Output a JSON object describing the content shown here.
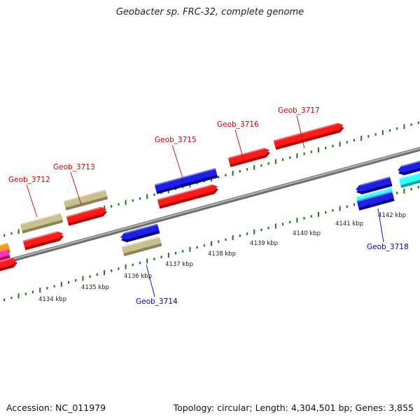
{
  "title": "Geobacter sp. FRC-32, complete genome",
  "footer": {
    "accession": "Accession: NC_011979",
    "summary": "Topology: circular; Length: 4,304,501 bp; Genes: 3,855"
  },
  "colors": {
    "forward_label": "#cc0000",
    "reverse_label": "#0000aa",
    "ticks": "#1a7a1a",
    "backbone": "#8a8a8a"
  },
  "scale_labels": [
    "4134 kbp",
    "4135 kbp",
    "4136 kbp",
    "4137 kbp",
    "4138 kbp",
    "4139 kbp",
    "4140 kbp",
    "4141 kbp",
    "4142 kbp"
  ],
  "genes": [
    {
      "label": "Geob_3712",
      "strand": "forward"
    },
    {
      "label": "Geob_3713",
      "strand": "forward"
    },
    {
      "label": "Geob_3714",
      "strand": "reverse"
    },
    {
      "label": "Geob_3715",
      "strand": "forward"
    },
    {
      "label": "Geob_3716",
      "strand": "forward"
    },
    {
      "label": "Geob_3717",
      "strand": "forward"
    },
    {
      "label": "Geob_3718",
      "strand": "reverse"
    }
  ]
}
